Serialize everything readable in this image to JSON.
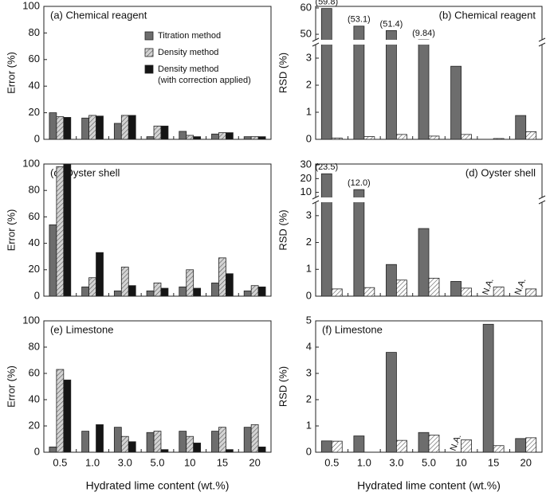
{
  "chart_data": [
    {
      "type": "bar",
      "title": "(a) Chemical reagent",
      "title_loc": "left",
      "ylabel": "Error (%)",
      "categories": [
        null,
        null,
        null,
        null,
        null,
        null,
        null
      ],
      "series": [
        {
          "name": "Titration method",
          "color": "#6d6d6d",
          "hatch": false,
          "values": [
            20,
            16,
            12,
            2,
            6,
            4,
            2
          ]
        },
        {
          "name": "Density method",
          "color": "#d4d4d4",
          "hatch": true,
          "values": [
            17,
            18,
            18,
            10,
            3,
            5,
            2
          ]
        },
        {
          "name": "Density method (with correction applied)",
          "color": "#151515",
          "hatch": false,
          "values": [
            16.5,
            17.5,
            18,
            10,
            2,
            5,
            2
          ]
        }
      ],
      "ylim": [
        0,
        100
      ],
      "yticks": [
        0,
        20,
        40,
        60,
        80,
        100
      ],
      "legend": "upper right"
    },
    {
      "type": "bar",
      "title": "(b) Chemical reagent",
      "title_loc": "right",
      "ylabel": "RSD (%)",
      "categories": [
        null,
        null,
        null,
        null,
        null,
        null,
        null
      ],
      "series": [
        {
          "color": "#6d6d6d",
          "hatch": false,
          "values": [
            59.8,
            53.1,
            51.4,
            9.84,
            2.7,
            null,
            0.88
          ],
          "value_labels": [
            "(59.8)",
            "(53.1)",
            "(51.4)",
            "(9.84)",
            null,
            null,
            null
          ]
        },
        {
          "color": "#ffffff",
          "hatch": true,
          "values": [
            0.05,
            0.1,
            0.18,
            0.12,
            0.18,
            0.03,
            0.28
          ]
        }
      ],
      "ylim": [
        0,
        3.5
      ],
      "yticks": [
        0,
        1,
        2,
        3
      ],
      "y_upper_lim": [
        47.9,
        60.6
      ],
      "y_upper_ticks": [
        50,
        60
      ]
    },
    {
      "type": "bar",
      "title": "(c) Oyster shell",
      "title_loc": "left",
      "ylabel": "Error (%)",
      "categories": [
        null,
        null,
        null,
        null,
        null,
        null,
        null
      ],
      "series": [
        {
          "color": "#6d6d6d",
          "hatch": false,
          "values": [
            54,
            7,
            4,
            4,
            7,
            10,
            4
          ]
        },
        {
          "color": "#d4d4d4",
          "hatch": true,
          "values": [
            98,
            14,
            22,
            10,
            20,
            29,
            8
          ]
        },
        {
          "color": "#151515",
          "hatch": false,
          "values": [
            100,
            33,
            8,
            6,
            6,
            17,
            7
          ]
        }
      ],
      "ylim": [
        0,
        100
      ],
      "yticks": [
        0,
        20,
        40,
        60,
        80,
        100
      ]
    },
    {
      "type": "bar",
      "title": "(d) Oyster shell",
      "title_loc": "right",
      "ylabel": "RSD (%)",
      "categories": [
        null,
        null,
        null,
        null,
        null,
        null,
        null
      ],
      "series": [
        {
          "color": "#6d6d6d",
          "hatch": false,
          "values": [
            23.5,
            12.0,
            1.18,
            2.52,
            0.55,
            null,
            null
          ],
          "value_labels": [
            "(23.5)",
            "(12.0)",
            null,
            null,
            null,
            "N.A.",
            "N.A."
          ]
        },
        {
          "color": "#ffffff",
          "hatch": true,
          "values": [
            0.27,
            0.32,
            0.6,
            0.67,
            0.3,
            0.34,
            0.27
          ]
        }
      ],
      "ylim": [
        0,
        3.5
      ],
      "yticks": [
        0,
        1,
        2,
        3
      ],
      "y_upper_lim": [
        6.3,
        30.6
      ],
      "y_upper_ticks": [
        10,
        20,
        30
      ]
    },
    {
      "type": "bar",
      "title": "(e) Limestone",
      "title_loc": "left",
      "ylabel": "Error (%)",
      "xlabel": "Hydrated lime content (wt.%)",
      "categories": [
        "0.5",
        "1.0",
        "3.0",
        "5.0",
        "10",
        "15",
        "20"
      ],
      "series": [
        {
          "color": "#6d6d6d",
          "hatch": false,
          "values": [
            4,
            16,
            19,
            15,
            16,
            16,
            19
          ]
        },
        {
          "color": "#d4d4d4",
          "hatch": true,
          "values": [
            63,
            null,
            12,
            16,
            12,
            19,
            21
          ]
        },
        {
          "color": "#151515",
          "hatch": false,
          "values": [
            55,
            21,
            8,
            2,
            7,
            2,
            4
          ]
        }
      ],
      "ylim": [
        0,
        100
      ],
      "yticks": [
        0,
        20,
        40,
        60,
        80,
        100
      ]
    },
    {
      "type": "bar",
      "title": "(f) Limestone",
      "title_loc": "left",
      "ylabel": "RSD (%)",
      "xlabel": "Hydrated lime content (wt.%)",
      "categories": [
        "0.5",
        "1.0",
        "3.0",
        "5.0",
        "10",
        "15",
        "20"
      ],
      "series": [
        {
          "color": "#6d6d6d",
          "hatch": false,
          "values": [
            0.43,
            0.62,
            3.8,
            0.75,
            null,
            4.87,
            0.52
          ],
          "value_labels": [
            null,
            null,
            null,
            null,
            "N.A.",
            null,
            null
          ]
        },
        {
          "color": "#ffffff",
          "hatch": true,
          "values": [
            0.42,
            null,
            0.45,
            0.65,
            0.47,
            0.25,
            0.55
          ]
        }
      ],
      "ylim": [
        0,
        5
      ],
      "yticks": [
        0,
        1,
        2,
        3,
        4,
        5
      ]
    }
  ]
}
